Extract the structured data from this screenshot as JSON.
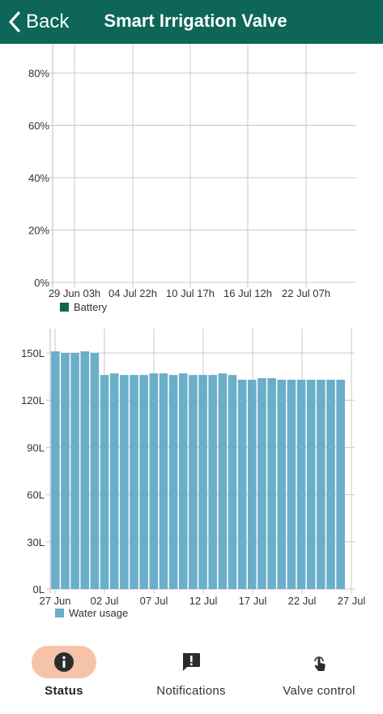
{
  "header": {
    "back_label": "Back",
    "title": "Smart Irrigation Valve",
    "bg_color": "#0d6658"
  },
  "tabs": [
    {
      "label": "Status",
      "icon": "info-icon",
      "active": true
    },
    {
      "label": "Notifications",
      "icon": "alert-message-icon",
      "active": false
    },
    {
      "label": "Valve control",
      "icon": "touch-icon",
      "active": false
    }
  ],
  "chart_data": [
    {
      "type": "line",
      "legend": [
        "Battery"
      ],
      "legend_position": "bottom-left",
      "y_ticks": [
        "0%",
        "20%",
        "40%",
        "60%",
        "80%"
      ],
      "ylim": [
        0,
        90
      ],
      "x_ticks": [
        "29 Jun 03h",
        "04 Jul 22h",
        "10 Jul 17h",
        "16 Jul 12h",
        "22 Jul 07h"
      ],
      "series": [
        {
          "name": "Battery",
          "color": "#0d6658",
          "values": []
        }
      ],
      "grid": true
    },
    {
      "type": "bar",
      "legend": [
        "Water usage"
      ],
      "legend_position": "bottom-left",
      "y_ticks": [
        "0L",
        "30L",
        "60L",
        "90L",
        "120L",
        "150L"
      ],
      "ylim": [
        0,
        160
      ],
      "x_ticks": [
        "27 Jun",
        "02 Jul",
        "07 Jul",
        "12 Jul",
        "17 Jul",
        "22 Jul",
        "27 Jul"
      ],
      "categories": [
        "27 Jun",
        "28 Jun",
        "29 Jun",
        "30 Jun",
        "01 Jul",
        "02 Jul",
        "03 Jul",
        "04 Jul",
        "05 Jul",
        "06 Jul",
        "07 Jul",
        "08 Jul",
        "09 Jul",
        "10 Jul",
        "11 Jul",
        "12 Jul",
        "13 Jul",
        "14 Jul",
        "15 Jul",
        "16 Jul",
        "17 Jul",
        "18 Jul",
        "19 Jul",
        "20 Jul",
        "21 Jul",
        "22 Jul",
        "23 Jul",
        "24 Jul",
        "25 Jul",
        "26 Jul"
      ],
      "series": [
        {
          "name": "Water usage",
          "color": "#6aaec9",
          "values": [
            151,
            150,
            150,
            151,
            150,
            136,
            137,
            136,
            136,
            136,
            137,
            137,
            136,
            137,
            136,
            136,
            136,
            137,
            136,
            133,
            133,
            134,
            134,
            133,
            133,
            133,
            133,
            133,
            133,
            133
          ]
        }
      ],
      "grid": true
    }
  ]
}
